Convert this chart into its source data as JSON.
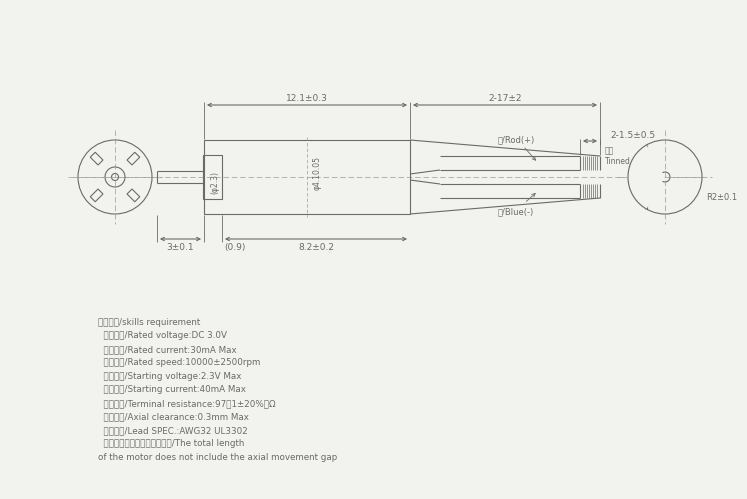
{
  "bg_color": "#f2f2ee",
  "line_color": "#6a6a6a",
  "text_color": "#6a6a6a",
  "line_width": 0.8,
  "specs": [
    "技术要求/skills requirement",
    "  额定电压/Rated voltage:DC 3.0V",
    "  额定电流/Rated current:30mA Max",
    "  额定转速/Rated speed:10000±2500rpm",
    "  启动电压/Starting voltage:2.3V Max",
    "  启动电流/Starting current:40mA Max",
    "  端子阻抗/Terminal resistance:97（1±20%）Ω",
    "  轴向间隙/Axial clearance:0.3mm Max",
    "  导线规格/Lead SPEC.:AWG32 UL3302",
    "  电机总长不包括轴向窜动间隙/The total length",
    "of the motor does not include the axial movement gap"
  ],
  "dim_121": "12.1±0.3",
  "dim_217": "2-17±2",
  "dim_215": "2-1.5±0.5",
  "dim_82": "8.2±0.2",
  "dim_3": "3±0.1",
  "dim_09": "(0.9)",
  "dim_d23": "(φ2.3)",
  "dim_d4": "φ4.10.05",
  "dim_r2": "R2±0.1",
  "tinned": "镀锡\nTinned",
  "red_wire": "红/Rod(+)",
  "blue_wire": "蓝/Blue(-)"
}
